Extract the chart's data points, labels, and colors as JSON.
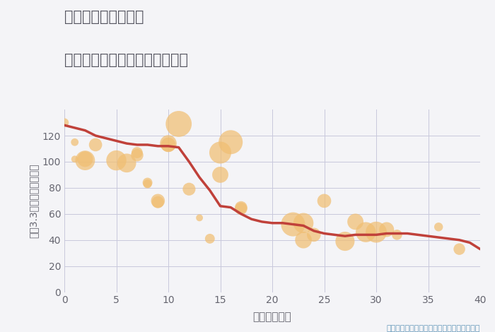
{
  "title_line1": "千葉県成田市水の上",
  "title_line2": "築年数別中古マンション坪単価",
  "xlabel": "築年数（年）",
  "ylabel": "平（3.3㎡）単価（万円）",
  "annotation": "円の大きさは、取引のあった物件面積を示す",
  "scatter_x": [
    0,
    1,
    1,
    2,
    2,
    3,
    5,
    6,
    7,
    7,
    8,
    8,
    9,
    9,
    10,
    10,
    11,
    12,
    13,
    14,
    15,
    15,
    16,
    17,
    17,
    22,
    23,
    23,
    24,
    25,
    27,
    28,
    29,
    30,
    31,
    32,
    36,
    38
  ],
  "scatter_y": [
    130,
    115,
    102,
    101,
    102,
    113,
    101,
    99,
    107,
    105,
    84,
    83,
    70,
    69,
    113,
    114,
    129,
    79,
    57,
    41,
    107,
    90,
    115,
    65,
    64,
    52,
    40,
    53,
    44,
    70,
    39,
    54,
    46,
    46,
    48,
    44,
    50,
    33
  ],
  "scatter_size": [
    80,
    60,
    50,
    400,
    250,
    180,
    420,
    370,
    130,
    160,
    100,
    80,
    200,
    150,
    220,
    290,
    700,
    170,
    50,
    100,
    500,
    270,
    600,
    160,
    160,
    600,
    290,
    420,
    200,
    200,
    380,
    270,
    420,
    460,
    230,
    110,
    80,
    140
  ],
  "line_x": [
    0,
    1,
    2,
    3,
    4,
    5,
    6,
    7,
    8,
    9,
    10,
    11,
    12,
    13,
    14,
    15,
    16,
    17,
    18,
    19,
    20,
    21,
    22,
    23,
    24,
    25,
    26,
    27,
    28,
    29,
    30,
    31,
    32,
    33,
    34,
    35,
    36,
    37,
    38,
    39,
    40
  ],
  "line_y": [
    128,
    126,
    124,
    120,
    118,
    116,
    114,
    113,
    113,
    112,
    112,
    111,
    100,
    88,
    78,
    66,
    65,
    60,
    56,
    54,
    53,
    53,
    52,
    51,
    47,
    45,
    44,
    43,
    44,
    44,
    44,
    45,
    45,
    45,
    44,
    43,
    42,
    41,
    40,
    38,
    33
  ],
  "scatter_color": "#F0BE72",
  "scatter_alpha": 0.72,
  "line_color": "#C0413A",
  "line_width": 2.5,
  "bg_color": "#F4F4F7",
  "grid_color": "#C8C8DC",
  "title_color": "#555560",
  "axis_label_color": "#666670",
  "annotation_color": "#6699BB",
  "xlim": [
    0,
    40
  ],
  "ylim": [
    0,
    140
  ],
  "xticks": [
    0,
    5,
    10,
    15,
    20,
    25,
    30,
    35,
    40
  ],
  "yticks": [
    0,
    20,
    40,
    60,
    80,
    100,
    120
  ]
}
